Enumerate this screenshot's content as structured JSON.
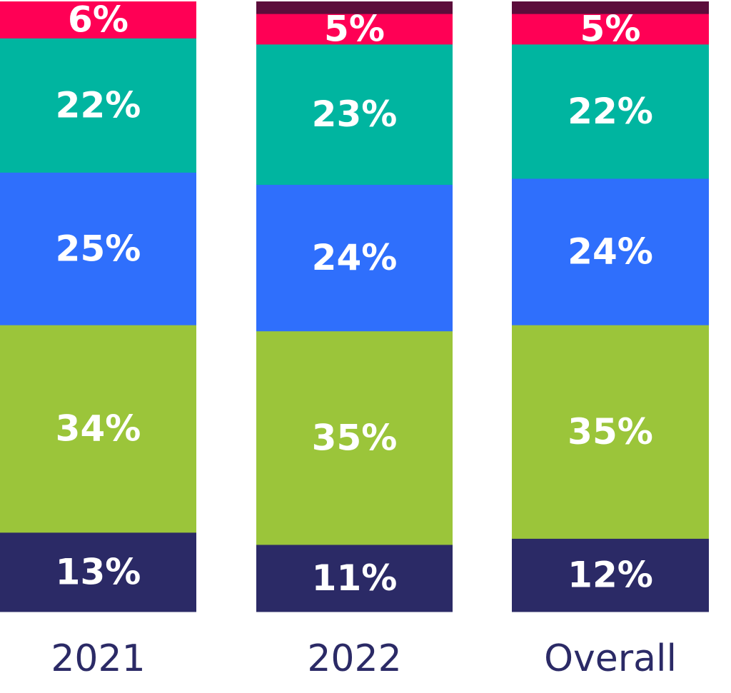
{
  "chart_data": {
    "type": "bar",
    "stacked": true,
    "categories": [
      "2021",
      "2022",
      "Overall"
    ],
    "series": [
      {
        "values": [
          13,
          11,
          12
        ],
        "labels": [
          "13%",
          "11%",
          "12%"
        ],
        "color": "#2b2a66"
      },
      {
        "values": [
          34,
          35,
          35
        ],
        "labels": [
          "34%",
          "35%",
          "35%"
        ],
        "color": "#9bc53a"
      },
      {
        "values": [
          25,
          24,
          24
        ],
        "labels": [
          "25%",
          "24%",
          "24%"
        ],
        "color": "#2f6ffc"
      },
      {
        "values": [
          22,
          23,
          22
        ],
        "labels": [
          "22%",
          "23%",
          "22%"
        ],
        "color": "#00b5a0"
      },
      {
        "values": [
          6,
          5,
          5
        ],
        "labels": [
          "6%",
          "5%",
          "5%"
        ],
        "color": "#ff0055"
      },
      {
        "values": [
          0,
          2,
          2
        ],
        "labels": [
          "",
          "",
          ""
        ],
        "color": "#5c0d3b"
      }
    ],
    "title": "",
    "xlabel": "",
    "ylabel": "",
    "legend": "none",
    "grid": false
  }
}
